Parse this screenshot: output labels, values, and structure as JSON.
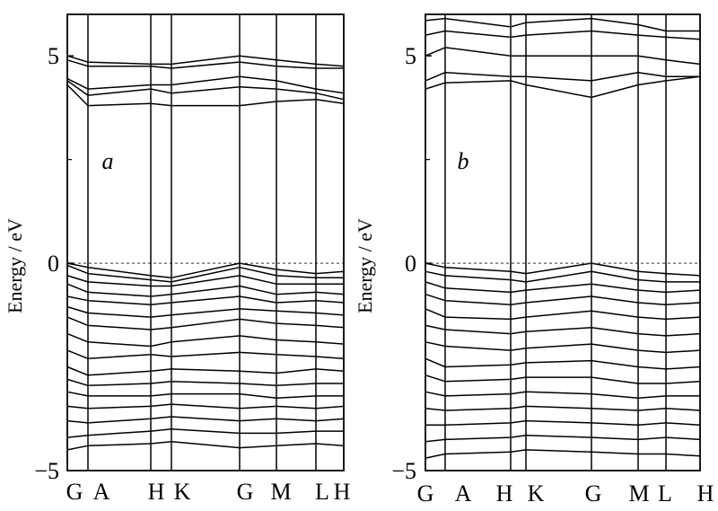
{
  "chart_data": [
    {
      "type": "line",
      "panel_label": "a",
      "ylabel": "Energy / eV",
      "ylim": [
        -5,
        6
      ],
      "yticks": [
        {
          "value": -5,
          "label": "−5"
        },
        {
          "value": 0,
          "label": "0"
        },
        {
          "value": 5,
          "label": "5"
        }
      ],
      "kpoints": [
        "G",
        "A",
        "H",
        "K",
        "G",
        "M",
        "L",
        "H"
      ],
      "fermi_level": 0,
      "conduction_bands": [
        [
          5.0,
          4.85,
          4.8,
          4.8,
          5.0,
          4.9,
          4.8,
          4.75
        ],
        [
          4.9,
          4.75,
          4.75,
          4.7,
          4.85,
          4.75,
          4.7,
          4.7
        ],
        [
          4.45,
          4.2,
          4.3,
          4.3,
          4.5,
          4.4,
          4.2,
          4.1
        ],
        [
          4.4,
          4.05,
          4.2,
          4.1,
          4.25,
          4.2,
          4.1,
          3.95
        ],
        [
          4.3,
          3.8,
          3.85,
          3.8,
          3.8,
          3.9,
          3.95,
          3.85
        ]
      ],
      "valence_bands": [
        [
          0.0,
          -0.1,
          -0.3,
          -0.35,
          0.0,
          -0.15,
          -0.25,
          -0.2
        ],
        [
          -0.05,
          -0.25,
          -0.4,
          -0.45,
          -0.1,
          -0.3,
          -0.35,
          -0.35
        ],
        [
          -0.3,
          -0.45,
          -0.55,
          -0.55,
          -0.3,
          -0.5,
          -0.5,
          -0.5
        ],
        [
          -0.5,
          -0.7,
          -0.8,
          -0.75,
          -0.55,
          -0.75,
          -0.7,
          -0.75
        ],
        [
          -0.8,
          -0.9,
          -1.0,
          -0.95,
          -0.8,
          -0.95,
          -0.9,
          -0.95
        ],
        [
          -1.05,
          -1.2,
          -1.3,
          -1.25,
          -1.1,
          -1.15,
          -1.2,
          -1.25
        ],
        [
          -1.3,
          -1.5,
          -1.6,
          -1.55,
          -1.35,
          -1.45,
          -1.5,
          -1.55
        ],
        [
          -1.7,
          -1.9,
          -2.0,
          -1.9,
          -1.75,
          -1.85,
          -1.9,
          -1.95
        ],
        [
          -2.1,
          -2.3,
          -2.2,
          -2.25,
          -2.15,
          -2.2,
          -2.25,
          -2.3
        ],
        [
          -2.5,
          -2.7,
          -2.6,
          -2.55,
          -2.6,
          -2.65,
          -2.55,
          -2.6
        ],
        [
          -2.8,
          -2.95,
          -2.9,
          -2.85,
          -2.9,
          -2.95,
          -2.9,
          -2.9
        ],
        [
          -3.1,
          -3.2,
          -3.2,
          -3.15,
          -3.15,
          -3.25,
          -3.2,
          -3.2
        ],
        [
          -3.45,
          -3.5,
          -3.45,
          -3.4,
          -3.5,
          -3.45,
          -3.5,
          -3.45
        ],
        [
          -3.8,
          -3.85,
          -3.75,
          -3.7,
          -3.8,
          -3.75,
          -3.8,
          -3.75
        ],
        [
          -4.2,
          -4.15,
          -4.05,
          -4.0,
          -4.1,
          -4.1,
          -4.05,
          -4.05
        ],
        [
          -4.5,
          -4.4,
          -4.35,
          -4.3,
          -4.45,
          -4.4,
          -4.35,
          -4.4
        ]
      ]
    },
    {
      "type": "line",
      "panel_label": "b",
      "ylabel": "Energy / eV",
      "ylim": [
        -5,
        6
      ],
      "yticks": [
        {
          "value": -5,
          "label": "−5"
        },
        {
          "value": 0,
          "label": "0"
        },
        {
          "value": 5,
          "label": "5"
        }
      ],
      "kpoints": [
        "G",
        "A",
        "H",
        "K",
        "G",
        "M",
        "L",
        "H"
      ],
      "fermi_level": 0,
      "conduction_bands": [
        [
          5.85,
          5.9,
          5.7,
          5.8,
          5.9,
          5.75,
          5.6,
          5.6
        ],
        [
          5.5,
          5.6,
          5.45,
          5.5,
          5.6,
          5.5,
          5.45,
          5.4
        ],
        [
          5.0,
          5.2,
          5.0,
          5.0,
          5.0,
          5.0,
          4.9,
          4.8
        ],
        [
          4.4,
          4.6,
          4.5,
          4.5,
          4.4,
          4.6,
          4.5,
          4.5
        ],
        [
          4.2,
          4.35,
          4.4,
          4.3,
          4.0,
          4.3,
          4.4,
          4.5
        ]
      ],
      "valence_bands": [
        [
          0.0,
          -0.1,
          -0.2,
          -0.25,
          0.0,
          -0.2,
          -0.25,
          -0.3
        ],
        [
          -0.2,
          -0.3,
          -0.4,
          -0.45,
          -0.2,
          -0.4,
          -0.45,
          -0.45
        ],
        [
          -0.45,
          -0.6,
          -0.7,
          -0.65,
          -0.5,
          -0.65,
          -0.7,
          -0.65
        ],
        [
          -0.75,
          -0.9,
          -1.0,
          -0.95,
          -0.8,
          -0.95,
          -1.0,
          -0.95
        ],
        [
          -1.1,
          -1.3,
          -1.35,
          -1.3,
          -1.15,
          -1.3,
          -1.35,
          -1.3
        ],
        [
          -1.5,
          -1.6,
          -1.7,
          -1.65,
          -1.55,
          -1.7,
          -1.75,
          -1.7
        ],
        [
          -1.9,
          -2.0,
          -2.1,
          -2.05,
          -1.95,
          -2.1,
          -2.15,
          -2.1
        ],
        [
          -2.3,
          -2.5,
          -2.45,
          -2.4,
          -2.35,
          -2.5,
          -2.55,
          -2.5
        ],
        [
          -2.7,
          -2.85,
          -2.8,
          -2.75,
          -2.75,
          -2.9,
          -2.9,
          -2.85
        ],
        [
          -3.1,
          -3.2,
          -3.15,
          -3.1,
          -3.15,
          -3.25,
          -3.2,
          -3.2
        ],
        [
          -3.5,
          -3.55,
          -3.5,
          -3.45,
          -3.5,
          -3.55,
          -3.5,
          -3.55
        ],
        [
          -3.9,
          -3.9,
          -3.85,
          -3.8,
          -3.85,
          -3.9,
          -3.85,
          -3.9
        ],
        [
          -4.3,
          -4.25,
          -4.2,
          -4.15,
          -4.2,
          -4.25,
          -4.2,
          -4.25
        ],
        [
          -4.7,
          -4.6,
          -4.55,
          -4.5,
          -4.55,
          -4.6,
          -4.6,
          -4.65
        ]
      ]
    }
  ]
}
